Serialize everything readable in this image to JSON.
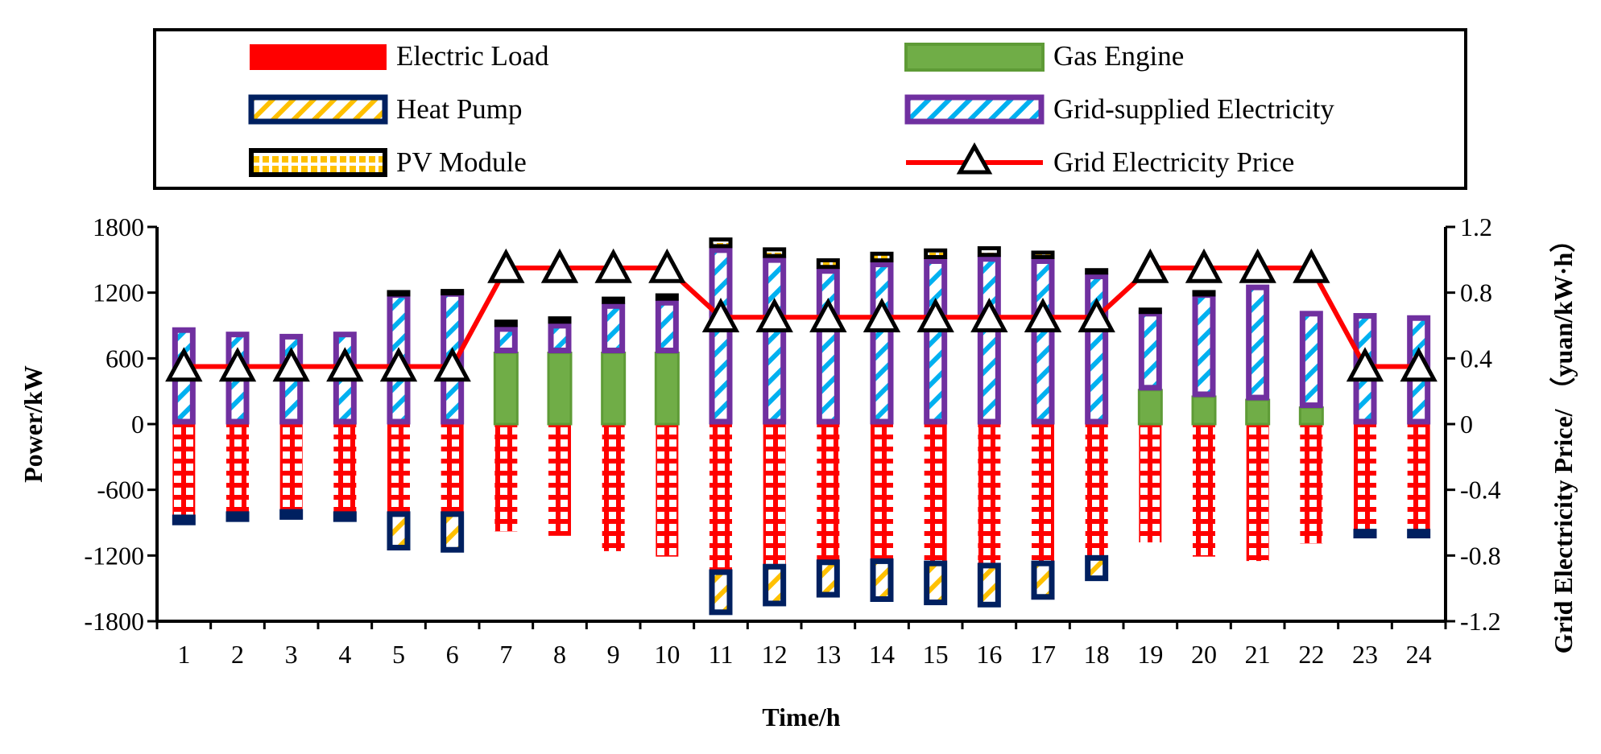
{
  "chart_data": {
    "type": "bar",
    "subtype": "stacked bar with line on secondary axis",
    "xlabel": "Time/h",
    "ylabel": "Power/kW",
    "y2label": "Grid Electricity Price/ （yuan/kW·h）",
    "ylim": [
      -1800,
      1800
    ],
    "y2lim": [
      -1.2,
      1.2
    ],
    "categories": [
      "1",
      "2",
      "3",
      "4",
      "5",
      "6",
      "7",
      "8",
      "9",
      "10",
      "11",
      "12",
      "13",
      "14",
      "15",
      "16",
      "17",
      "18",
      "19",
      "20",
      "21",
      "22",
      "23",
      "24"
    ],
    "yticks": [
      "1800",
      "1200",
      "600",
      "0",
      "-600",
      "-1200",
      "-1800"
    ],
    "y2ticks": [
      "1.2",
      "0.8",
      "0.4",
      "0",
      "-0.4",
      "-0.8",
      "-1.2"
    ],
    "legend": [
      {
        "key": "electric_load",
        "label": "Electric Load"
      },
      {
        "key": "gas_engine",
        "label": "Gas Engine"
      },
      {
        "key": "heat_pump",
        "label": "Heat Pump"
      },
      {
        "key": "grid_supplied",
        "label": "Grid-supplied Electricity"
      },
      {
        "key": "pv_module",
        "label": "PV Module"
      },
      {
        "key": "grid_price",
        "label": "Grid Electricity Price"
      }
    ],
    "series": [
      {
        "name": "Electric Load",
        "key": "electric_load",
        "axis": "left",
        "values": [
          -830,
          -800,
          -780,
          -800,
          -800,
          -800,
          -980,
          -1020,
          -1160,
          -1210,
          -1330,
          -1280,
          -1240,
          -1230,
          -1250,
          -1270,
          -1250,
          -1200,
          -1080,
          -1210,
          -1250,
          -1090,
          -960,
          -960
        ]
      },
      {
        "name": "Heat Pump",
        "key": "heat_pump",
        "axis": "left",
        "values": [
          -90,
          -90,
          -90,
          -90,
          -350,
          -370,
          0,
          0,
          0,
          0,
          -410,
          -380,
          -340,
          -390,
          -400,
          -400,
          -350,
          -230,
          0,
          0,
          0,
          0,
          -80,
          -80
        ]
      },
      {
        "name": "Gas Engine",
        "key": "gas_engine",
        "axis": "left",
        "values": [
          0,
          0,
          0,
          0,
          0,
          0,
          650,
          650,
          650,
          650,
          0,
          0,
          0,
          0,
          0,
          0,
          0,
          0,
          310,
          250,
          220,
          150,
          0,
          0
        ]
      },
      {
        "name": "Grid-supplied Electricity",
        "key": "grid_supplied",
        "axis": "left",
        "values": [
          880,
          840,
          820,
          840,
          1200,
          1210,
          240,
          270,
          450,
          480,
          1610,
          1520,
          1420,
          1480,
          1510,
          1530,
          1510,
          1370,
          720,
          950,
          1050,
          880,
          1010,
          990
        ]
      },
      {
        "name": "PV Module",
        "key": "pv_module",
        "axis": "left",
        "values": [
          0,
          0,
          0,
          0,
          20,
          20,
          60,
          60,
          60,
          60,
          90,
          90,
          90,
          90,
          90,
          90,
          70,
          50,
          30,
          20,
          0,
          0,
          0,
          0
        ]
      },
      {
        "name": "Grid Electricity Price",
        "key": "grid_price",
        "axis": "right",
        "type": "line",
        "values": [
          0.35,
          0.35,
          0.35,
          0.35,
          0.35,
          0.35,
          0.95,
          0.95,
          0.95,
          0.95,
          0.65,
          0.65,
          0.65,
          0.65,
          0.65,
          0.65,
          0.65,
          0.65,
          0.95,
          0.95,
          0.95,
          0.95,
          0.35,
          0.35
        ]
      }
    ],
    "colors": {
      "electric_load": "#ff0000",
      "gas_engine": "#70ad47",
      "gas_engine_border": "#5e9b36",
      "heat_pump_border": "#002060",
      "heat_pump_stripe": "#ffc000",
      "grid_border": "#7030a0",
      "grid_stripe": "#00b0f0",
      "pv_border": "#000000",
      "pv_dot": "#ffc000",
      "price_line": "#ff0000"
    }
  }
}
